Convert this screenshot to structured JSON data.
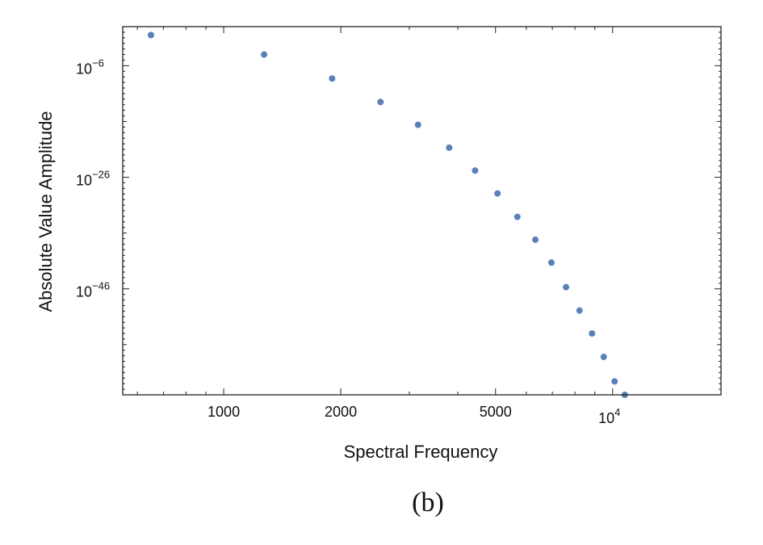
{
  "chart_data": {
    "type": "scatter",
    "x_scale": "log",
    "y_scale": "log",
    "xlim": [
      550,
      19000
    ],
    "ylim_exp": [
      -65,
      1
    ],
    "xlabel": "Spectral Frequency",
    "ylabel": "Absolute Value Amplitude",
    "x_tick_labels": [
      {
        "value": 1000,
        "label": "1000"
      },
      {
        "value": 2000,
        "label": "2000"
      },
      {
        "value": 5000,
        "label": "5000"
      },
      {
        "value": 10000,
        "base": "10",
        "exp": "4"
      }
    ],
    "y_tick_labels": [
      {
        "exp": -6,
        "base": "10",
        "exp_label": "−6"
      },
      {
        "exp": -26,
        "base": "10",
        "exp_label": "−26"
      },
      {
        "exp": -46,
        "base": "10",
        "exp_label": "−46"
      }
    ],
    "points": [
      {
        "x": 650,
        "y_exp": -0.5
      },
      {
        "x": 1270,
        "y_exp": -4.0
      },
      {
        "x": 1900,
        "y_exp": -8.3
      },
      {
        "x": 2530,
        "y_exp": -12.5
      },
      {
        "x": 3160,
        "y_exp": -16.6
      },
      {
        "x": 3800,
        "y_exp": -20.7
      },
      {
        "x": 4430,
        "y_exp": -24.8
      },
      {
        "x": 5060,
        "y_exp": -28.9
      },
      {
        "x": 5690,
        "y_exp": -33.1
      },
      {
        "x": 6330,
        "y_exp": -37.2
      },
      {
        "x": 6960,
        "y_exp": -41.3
      },
      {
        "x": 7590,
        "y_exp": -45.7
      },
      {
        "x": 8220,
        "y_exp": -49.9
      },
      {
        "x": 8850,
        "y_exp": -54.0
      },
      {
        "x": 9490,
        "y_exp": -58.2
      },
      {
        "x": 10120,
        "y_exp": -62.6
      },
      {
        "x": 10750,
        "y_exp": -65.0
      }
    ],
    "point_color": "#5b7fb8",
    "grid": false,
    "caption": "(b)"
  }
}
